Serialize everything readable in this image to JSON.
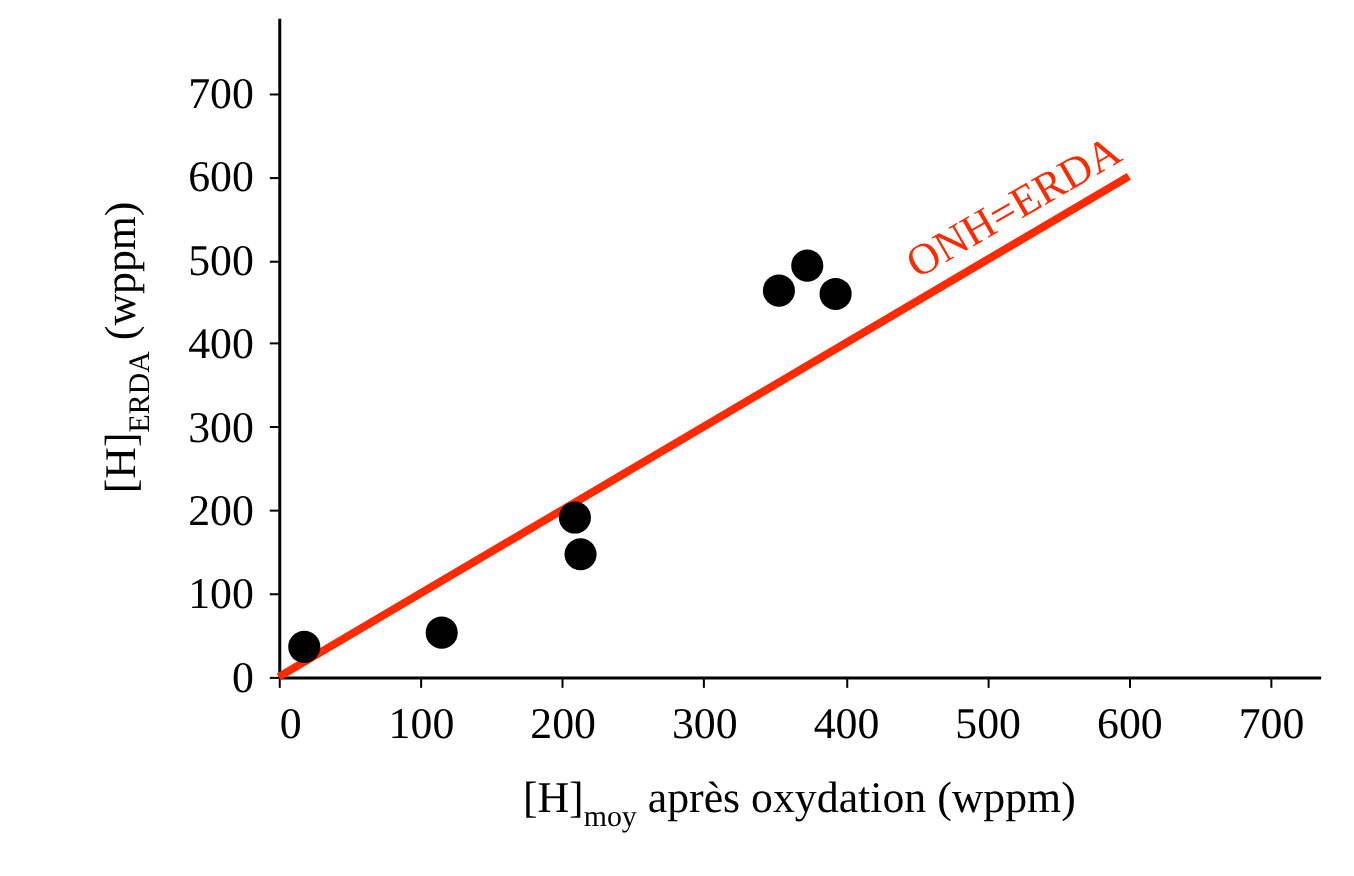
{
  "chart_data": {
    "type": "scatter",
    "xlabel": "[H]$_{moy}$ après oxydation (wppm)",
    "ylabel": "[H]$_{ERDA}$ (wppm)",
    "series": [
      {
        "type": "line",
        "color": "#ff2a00",
        "x": [
          0,
          600
        ],
        "values": [
          0,
          600
        ],
        "marker": "none"
      },
      {
        "color": "#000000",
        "x": [
          18,
          115,
          209,
          213,
          353,
          373,
          393
        ],
        "values": [
          36,
          53,
          191,
          147,
          463,
          493,
          459
        ],
        "marker": "circle"
      }
    ],
    "xlim": [
      0,
      735
    ],
    "ylim": [
      0,
      790
    ],
    "xticks": [
      0,
      100,
      200,
      300,
      400,
      500,
      600,
      700
    ],
    "yticks": [
      0,
      100,
      200,
      300,
      400,
      500,
      600,
      700
    ],
    "grid": false,
    "legend": false,
    "annotations": [
      {
        "text": "ONH=ERDA",
        "x": 530,
        "y": 530
      }
    ]
  }
}
